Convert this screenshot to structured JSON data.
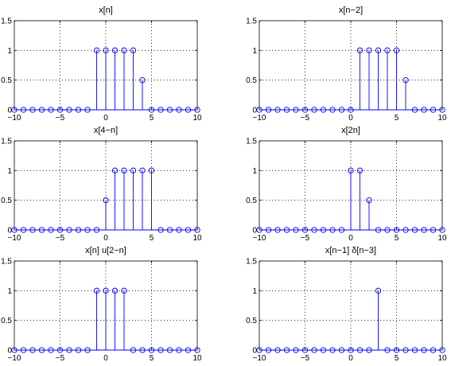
{
  "chart_data": [
    {
      "type": "stem",
      "title": "x[n]",
      "xlim": [
        -10,
        10
      ],
      "ylim": [
        0,
        1.5
      ],
      "xticks": [
        -10,
        -5,
        0,
        5,
        10
      ],
      "xtick_labels": [
        "−10",
        "−5",
        "0",
        "5",
        "10"
      ],
      "yticks": [
        0,
        0.5,
        1,
        1.5
      ],
      "ytick_labels": [
        "0",
        "0.5",
        "1",
        "1.5"
      ],
      "grid": true,
      "x": [
        -10,
        -9,
        -8,
        -7,
        -6,
        -5,
        -4,
        -3,
        -2,
        -1,
        0,
        1,
        2,
        3,
        4,
        5,
        6,
        7,
        8,
        9,
        10
      ],
      "y": [
        0,
        0,
        0,
        0,
        0,
        0,
        0,
        0,
        0,
        1,
        1,
        1,
        1,
        1,
        0.5,
        0,
        0,
        0,
        0,
        0,
        0
      ]
    },
    {
      "type": "stem",
      "title": "x[n−2]",
      "xlim": [
        -10,
        10
      ],
      "ylim": [
        0,
        1.5
      ],
      "xticks": [
        -10,
        -5,
        0,
        5,
        10
      ],
      "xtick_labels": [
        "−10",
        "−5",
        "0",
        "5",
        "10"
      ],
      "yticks": [
        0,
        0.5,
        1,
        1.5
      ],
      "ytick_labels": [
        "0",
        "0.5",
        "1",
        "1.5"
      ],
      "grid": true,
      "x": [
        -10,
        -9,
        -8,
        -7,
        -6,
        -5,
        -4,
        -3,
        -2,
        -1,
        0,
        1,
        2,
        3,
        4,
        5,
        6,
        7,
        8,
        9,
        10
      ],
      "y": [
        0,
        0,
        0,
        0,
        0,
        0,
        0,
        0,
        0,
        0,
        0,
        1,
        1,
        1,
        1,
        1,
        0.5,
        0,
        0,
        0,
        0
      ]
    },
    {
      "type": "stem",
      "title": "x[4−n]",
      "xlim": [
        -10,
        10
      ],
      "ylim": [
        0,
        1.5
      ],
      "xticks": [
        -10,
        -5,
        0,
        5,
        10
      ],
      "xtick_labels": [
        "−10",
        "−5",
        "0",
        "5",
        "10"
      ],
      "yticks": [
        0,
        0.5,
        1,
        1.5
      ],
      "ytick_labels": [
        "0",
        "0.5",
        "1",
        "1.5"
      ],
      "grid": true,
      "x": [
        -10,
        -9,
        -8,
        -7,
        -6,
        -5,
        -4,
        -3,
        -2,
        -1,
        0,
        1,
        2,
        3,
        4,
        5,
        6,
        7,
        8,
        9,
        10
      ],
      "y": [
        0,
        0,
        0,
        0,
        0,
        0,
        0,
        0,
        0,
        0,
        0.5,
        1,
        1,
        1,
        1,
        1,
        0,
        0,
        0,
        0,
        0
      ]
    },
    {
      "type": "stem",
      "title": "x[2n]",
      "xlim": [
        -10,
        10
      ],
      "ylim": [
        0,
        1.5
      ],
      "xticks": [
        -10,
        -5,
        0,
        5,
        10
      ],
      "xtick_labels": [
        "−10",
        "−5",
        "0",
        "5",
        "10"
      ],
      "yticks": [
        0,
        0.5,
        1,
        1.5
      ],
      "ytick_labels": [
        "0",
        "0.5",
        "1",
        "1.5"
      ],
      "grid": true,
      "x": [
        -10,
        -9,
        -8,
        -7,
        -6,
        -5,
        -4,
        -3,
        -2,
        -1,
        0,
        1,
        2,
        3,
        4,
        5,
        6,
        7,
        8,
        9,
        10
      ],
      "y": [
        0,
        0,
        0,
        0,
        0,
        0,
        0,
        0,
        0,
        0,
        1,
        1,
        0.5,
        0,
        0,
        0,
        0,
        0,
        0,
        0,
        0
      ]
    },
    {
      "type": "stem",
      "title": "x[n] u[2−n]",
      "xlim": [
        -10,
        10
      ],
      "ylim": [
        0,
        1.5
      ],
      "xticks": [
        -10,
        -5,
        0,
        5,
        10
      ],
      "xtick_labels": [
        "−10",
        "−5",
        "0",
        "5",
        "10"
      ],
      "yticks": [
        0,
        0.5,
        1,
        1.5
      ],
      "ytick_labels": [
        "0",
        "0.5",
        "1",
        "1.5"
      ],
      "grid": true,
      "x": [
        -10,
        -9,
        -8,
        -7,
        -6,
        -5,
        -4,
        -3,
        -2,
        -1,
        0,
        1,
        2,
        3,
        4,
        5,
        6,
        7,
        8,
        9,
        10
      ],
      "y": [
        0,
        0,
        0,
        0,
        0,
        0,
        0,
        0,
        0,
        1,
        1,
        1,
        1,
        0,
        0,
        0,
        0,
        0,
        0,
        0,
        0
      ]
    },
    {
      "type": "stem",
      "title": "x[n−1] δ[n−3]",
      "xlim": [
        -10,
        10
      ],
      "ylim": [
        0,
        1.5
      ],
      "xticks": [
        -10,
        -5,
        0,
        5,
        10
      ],
      "xtick_labels": [
        "−10",
        "−5",
        "0",
        "5",
        "10"
      ],
      "yticks": [
        0,
        0.5,
        1,
        1.5
      ],
      "ytick_labels": [
        "0",
        "0.5",
        "1",
        "1.5"
      ],
      "grid": true,
      "x": [
        -10,
        -9,
        -8,
        -7,
        -6,
        -5,
        -4,
        -3,
        -2,
        -1,
        0,
        1,
        2,
        3,
        4,
        5,
        6,
        7,
        8,
        9,
        10
      ],
      "y": [
        0,
        0,
        0,
        0,
        0,
        0,
        0,
        0,
        0,
        0,
        0,
        0,
        0,
        1,
        0,
        0,
        0,
        0,
        0,
        0,
        0
      ]
    }
  ],
  "colors": {
    "stem": "#0000ff",
    "axes": "#000000",
    "background": "#ffffff"
  }
}
